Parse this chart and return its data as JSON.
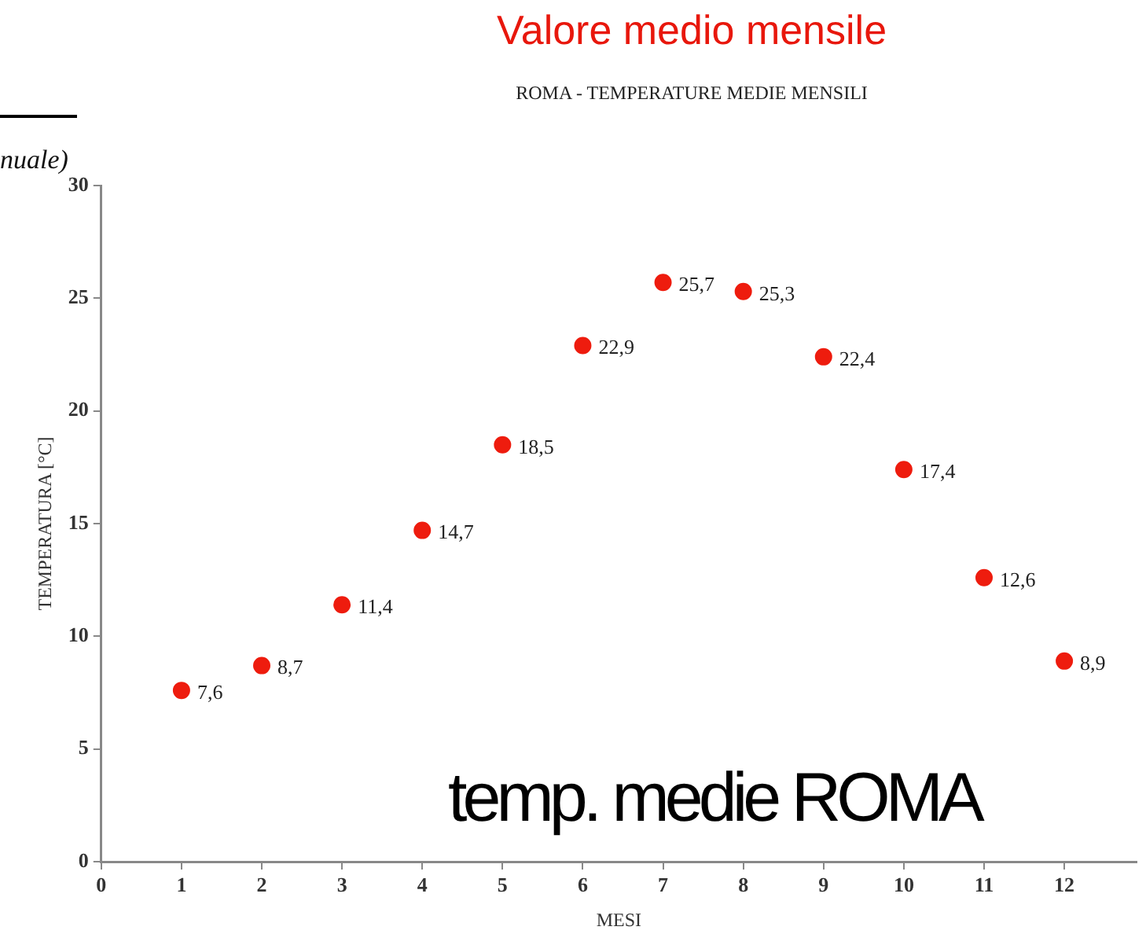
{
  "chart_data": {
    "type": "scatter",
    "title": "Valore medio mensile",
    "subtitle": "ROMA - TEMPERATURE MEDIE MENSILI",
    "xlabel": "MESI",
    "ylabel": "TEMPERATURA [°C]",
    "annotations": [
      "nuale)",
      "temp. medie ROMA"
    ],
    "x": [
      1,
      2,
      3,
      4,
      5,
      6,
      7,
      8,
      9,
      10,
      11,
      12
    ],
    "series": [
      {
        "color": "#ee1c0e",
        "values": [
          7.6,
          8.7,
          11.4,
          14.7,
          18.5,
          22.9,
          25.7,
          25.3,
          22.4,
          17.4,
          12.6,
          8.9
        ],
        "value_labels": [
          "7,6",
          "8,7",
          "11,4",
          "14,7",
          "18,5",
          "22,9",
          "25,7",
          "25,3",
          "22,4",
          "17,4",
          "12,6",
          "8,9"
        ]
      }
    ],
    "xlim": [
      0,
      12.9
    ],
    "xticks": [
      0,
      1,
      2,
      3,
      4,
      5,
      6,
      7,
      8,
      9,
      10,
      11,
      12
    ],
    "ylim": [
      0,
      30
    ],
    "yticks": [
      0,
      5,
      10,
      15,
      20,
      25,
      30
    ],
    "grid": false,
    "legend": false,
    "marker": "circle"
  }
}
